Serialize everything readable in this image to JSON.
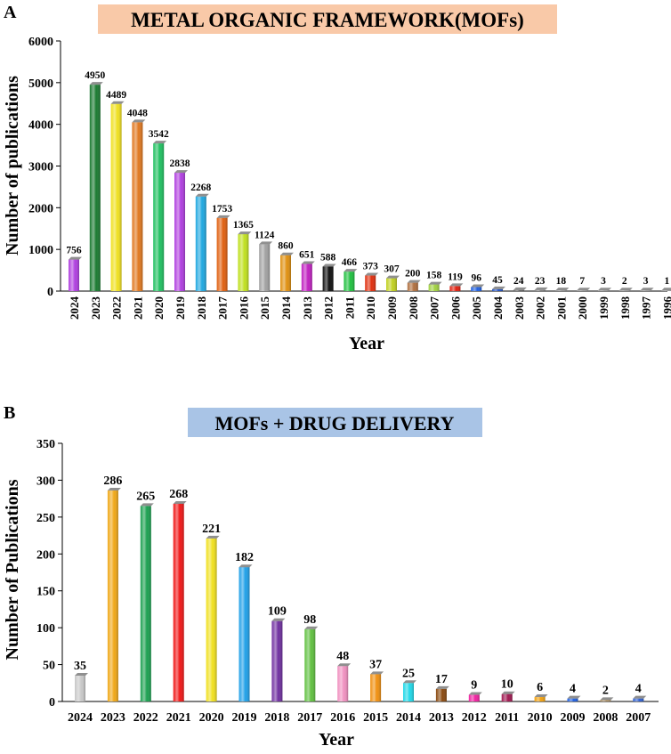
{
  "panels": [
    {
      "letter": "A"
    },
    {
      "letter": "B"
    }
  ],
  "chart_data": [
    {
      "type": "bar",
      "title": "METAL ORGANIC FRAMEWORK(MOFs)",
      "title_bg": "#f9c9a8",
      "xlabel": "Year",
      "ylabel": "Number of publications",
      "ylim": [
        0,
        6000
      ],
      "yticks": [
        0,
        1000,
        2000,
        3000,
        4000,
        5000,
        6000
      ],
      "categories": [
        "2024",
        "2023",
        "2022",
        "2021",
        "2020",
        "2019",
        "2018",
        "2017",
        "2016",
        "2015",
        "2014",
        "2013",
        "2012",
        "2011",
        "2010",
        "2009",
        "2008",
        "2007",
        "2006",
        "2005",
        "2004",
        "2003",
        "2002",
        "2001",
        "2000",
        "1999",
        "1998",
        "1997",
        "1996"
      ],
      "values": [
        756,
        4950,
        4489,
        4048,
        3542,
        2838,
        2268,
        1753,
        1365,
        1124,
        860,
        651,
        588,
        466,
        373,
        307,
        200,
        158,
        119,
        96,
        45,
        24,
        23,
        18,
        7,
        3,
        2,
        3,
        1
      ],
      "colors": [
        "#b040e0",
        "#1a7a30",
        "#f0e020",
        "#e07820",
        "#20c060",
        "#b040e0",
        "#20a8e0",
        "#e06010",
        "#c0e020",
        "#a0a0a0",
        "#e09010",
        "#c020c0",
        "#101010",
        "#20c040",
        "#e03010",
        "#c0d020",
        "#b07040",
        "#a0d040",
        "#e02010",
        "#2060e0",
        "#2050c0",
        "#606060",
        "#808080",
        "#909090",
        "#a0a0a0",
        "#a0a0a0",
        "#a0a0a0",
        "#a0a0a0",
        "#a0a0a0"
      ],
      "grid": false,
      "legend": "none"
    },
    {
      "type": "bar",
      "title": "MOFs + DRUG DELIVERY",
      "title_bg": "#a9c4e6",
      "xlabel": "Year",
      "ylabel": "Number of Publications",
      "ylim": [
        0,
        350
      ],
      "yticks": [
        0,
        50,
        100,
        150,
        200,
        250,
        300,
        350
      ],
      "categories": [
        "2024",
        "2023",
        "2022",
        "2021",
        "2020",
        "2019",
        "2018",
        "2017",
        "2016",
        "2015",
        "2014",
        "2013",
        "2012",
        "2011",
        "2010",
        "2009",
        "2008",
        "2007"
      ],
      "values": [
        35,
        286,
        265,
        268,
        221,
        182,
        109,
        98,
        48,
        37,
        25,
        17,
        9,
        10,
        6,
        4,
        2,
        4
      ],
      "colors": [
        "#c8c8c8",
        "#f0a818",
        "#1aa050",
        "#f01818",
        "#f0e020",
        "#20a0e8",
        "#7030a0",
        "#60c040",
        "#f090c0",
        "#f09010",
        "#20d8e8",
        "#8a4a10",
        "#f020a0",
        "#a01850",
        "#f0a010",
        "#2060e0",
        "#b09060",
        "#3060d0"
      ],
      "grid": false,
      "legend": "none"
    }
  ]
}
